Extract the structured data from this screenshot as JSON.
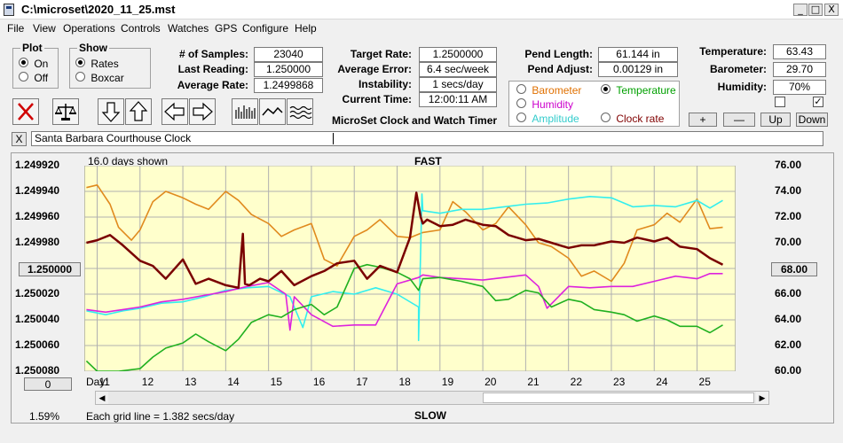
{
  "window": {
    "title": "C:\\microset\\2020_11_25.mst",
    "minimize": "_",
    "maximize": "□",
    "close": "X"
  },
  "menu": [
    "File",
    "View",
    "Operations",
    "Controls",
    "Watches",
    "GPS",
    "Configure",
    "Help"
  ],
  "plot": {
    "legend": "Plot",
    "options": [
      "On",
      "Off"
    ],
    "selected": "On"
  },
  "show": {
    "legend": "Show",
    "options": [
      "Rates",
      "Boxcar"
    ],
    "selected": "Rates"
  },
  "stats": {
    "samples_label": "# of Samples:",
    "samples": "23040",
    "last_label": "Last Reading:",
    "last": "1.250000",
    "avg_label": "Average Rate:",
    "avg": "1.2499868"
  },
  "target": {
    "target_label": "Target Rate:",
    "target": "1.2500000",
    "error_label": "Average Error:",
    "error": "6.4 sec/week",
    "instab_label": "Instability:",
    "instab": "1 secs/day",
    "time_label": "Current Time:",
    "time": "12:00:11 AM"
  },
  "app_name": "MicroSet Clock and Watch Timer",
  "pend": {
    "length_label": "Pend Length:",
    "length": "61.144 in",
    "adjust_label": "Pend Adjust:",
    "adjust": "0.00129 in"
  },
  "channels": {
    "options": [
      {
        "label": "Barometer",
        "color": "#e07000",
        "selected": false
      },
      {
        "label": "Temperature",
        "color": "#00a000",
        "selected": true
      },
      {
        "label": "Humidity",
        "color": "#cc00cc",
        "selected": false
      },
      {
        "label": "Clock rate",
        "color": "#800000",
        "selected": false
      },
      {
        "label": "Amplitude",
        "color": "#33cccc",
        "selected": false
      }
    ]
  },
  "env": {
    "temp_label": "Temperature:",
    "temp": "63.43",
    "baro_label": "Barometer:",
    "baro": "29.70",
    "hum_label": "Humidity:",
    "hum": "70%",
    "check1": false,
    "check2": true,
    "plus": "+",
    "minus": "—",
    "up": "Up",
    "down": "Down"
  },
  "note": {
    "close": "X",
    "text": "Santa Barbara Courthouse Clock"
  },
  "chart_labels": {
    "days_shown": "16.0 days shown",
    "fast": "FAST",
    "slow": "SLOW",
    "grid_note": "Each grid line = 1.382 secs/day",
    "pct": "1.59%",
    "left_center_btn": "1.250000",
    "right_center_btn": "68.00",
    "zero_btn": "0",
    "day_label": "Day:"
  },
  "chart_data": {
    "type": "line",
    "xlim": [
      10.7,
      25.9
    ],
    "x_ticks": [
      11,
      12,
      13,
      14,
      15,
      16,
      17,
      18,
      19,
      20,
      21,
      22,
      23,
      24,
      25
    ],
    "left_axis": {
      "ticks": [
        "1.249920",
        "1.249940",
        "1.249960",
        "1.249980",
        "1.250000",
        "1.250020",
        "1.250040",
        "1.250060",
        "1.250080"
      ],
      "ylim": [
        1.24992,
        1.25008
      ],
      "inverted": true
    },
    "right_axis": {
      "ticks": [
        "76.00",
        "74.00",
        "72.00",
        "70.00",
        "68.00",
        "66.00",
        "64.00",
        "62.00",
        "60.00"
      ],
      "ylim": [
        60,
        76
      ]
    },
    "series": [
      {
        "name": "Barometer",
        "color": "#e08a1e",
        "axis": "right",
        "x": [
          10.75,
          11.0,
          11.3,
          11.5,
          11.8,
          12.0,
          12.3,
          12.6,
          13.0,
          13.3,
          13.6,
          14.0,
          14.3,
          14.6,
          15.0,
          15.3,
          15.6,
          16.0,
          16.3,
          16.6,
          17.0,
          17.3,
          17.6,
          18.0,
          18.3,
          18.6,
          19.0,
          19.3,
          19.6,
          20.0,
          20.3,
          20.6,
          21.0,
          21.3,
          21.6,
          22.0,
          22.3,
          22.6,
          23.0,
          23.3,
          23.6,
          24.0,
          24.3,
          24.6,
          25.0,
          25.3,
          25.6
        ],
        "y": [
          74.3,
          74.5,
          73.0,
          71.2,
          70.2,
          71.0,
          73.2,
          74.0,
          73.5,
          73.0,
          72.6,
          74.0,
          73.3,
          72.2,
          71.5,
          70.5,
          71.0,
          71.5,
          68.7,
          68.2,
          70.5,
          71.0,
          71.8,
          70.5,
          70.4,
          70.8,
          71.0,
          73.2,
          72.4,
          71.0,
          71.5,
          72.8,
          71.4,
          70.0,
          69.7,
          68.8,
          67.4,
          67.8,
          67.0,
          68.4,
          71.0,
          71.4,
          72.3,
          71.6,
          73.4,
          71.1,
          71.2
        ]
      },
      {
        "name": "Amplitude",
        "color": "#33eeee",
        "axis": "right",
        "x": [
          10.75,
          11.2,
          11.6,
          12.0,
          12.5,
          13.0,
          13.5,
          14.0,
          14.5,
          15.0,
          15.5,
          15.8,
          16.0,
          16.5,
          17.0,
          17.5,
          18.0,
          18.5,
          18.5,
          18.58,
          18.6,
          19.0,
          19.5,
          20.0,
          20.5,
          21.0,
          21.5,
          22.0,
          22.5,
          23.0,
          23.5,
          24.0,
          24.5,
          25.0,
          25.3,
          25.6
        ],
        "y": [
          64.7,
          64.4,
          64.7,
          64.9,
          65.3,
          65.4,
          65.8,
          66.3,
          66.5,
          66.6,
          65.8,
          63.4,
          65.8,
          66.2,
          66.0,
          66.5,
          66.0,
          65.0,
          62.4,
          73.8,
          72.5,
          72.3,
          72.6,
          72.6,
          72.8,
          73.0,
          73.1,
          73.4,
          73.6,
          73.5,
          72.8,
          72.9,
          72.8,
          73.3,
          72.7,
          73.3
        ]
      },
      {
        "name": "Humidity",
        "color": "#dd22dd",
        "axis": "right",
        "x": [
          10.75,
          11.2,
          11.6,
          12.0,
          12.5,
          13.0,
          13.5,
          14.0,
          14.5,
          15.0,
          15.4,
          15.5,
          15.6,
          16.0,
          16.5,
          17.0,
          17.5,
          18.0,
          18.5,
          18.6,
          19.0,
          19.5,
          20.0,
          20.5,
          21.0,
          21.3,
          21.5,
          22.0,
          22.5,
          23.0,
          23.5,
          24.0,
          24.5,
          25.0,
          25.3,
          25.6
        ],
        "y": [
          64.8,
          64.6,
          64.8,
          65.0,
          65.4,
          65.6,
          65.9,
          66.2,
          66.6,
          66.9,
          66.0,
          63.2,
          65.8,
          64.4,
          63.5,
          63.6,
          63.6,
          66.8,
          67.3,
          67.5,
          67.3,
          67.2,
          67.1,
          67.3,
          67.5,
          66.6,
          64.9,
          66.6,
          66.5,
          66.6,
          66.6,
          67.0,
          67.4,
          67.2,
          67.6,
          67.6
        ]
      },
      {
        "name": "Temperature",
        "color": "#20b020",
        "axis": "right",
        "x": [
          10.75,
          11.0,
          11.5,
          12.0,
          12.3,
          12.6,
          13.0,
          13.3,
          13.6,
          14.0,
          14.3,
          14.6,
          15.0,
          15.3,
          15.6,
          16.0,
          16.3,
          16.6,
          17.0,
          17.3,
          17.6,
          18.0,
          18.3,
          18.5,
          18.6,
          19.0,
          19.5,
          20.0,
          20.3,
          20.6,
          21.0,
          21.3,
          21.6,
          22.0,
          22.3,
          22.6,
          23.0,
          23.3,
          23.6,
          24.0,
          24.3,
          24.6,
          25.0,
          25.3,
          25.6
        ],
        "y": [
          60.8,
          60.0,
          60.0,
          60.2,
          61.1,
          61.8,
          62.2,
          62.9,
          62.3,
          61.6,
          62.5,
          63.8,
          64.4,
          64.2,
          64.8,
          65.2,
          64.4,
          65.0,
          68.0,
          68.3,
          68.1,
          67.7,
          67.2,
          66.3,
          67.2,
          67.3,
          67.0,
          66.6,
          65.5,
          65.6,
          66.3,
          66.1,
          65.0,
          65.6,
          65.4,
          64.8,
          64.6,
          64.4,
          63.9,
          64.3,
          64.0,
          63.5,
          63.5,
          63.0,
          63.6
        ]
      },
      {
        "name": "Clock rate",
        "color": "#7a0000",
        "axis": "left",
        "x": [
          10.75,
          11.0,
          11.3,
          11.6,
          12.0,
          12.3,
          12.6,
          13.0,
          13.3,
          13.6,
          14.0,
          14.3,
          14.4,
          14.45,
          14.55,
          14.8,
          15.0,
          15.3,
          15.6,
          16.0,
          16.3,
          16.6,
          17.0,
          17.3,
          17.6,
          18.0,
          18.3,
          18.45,
          18.55,
          18.6,
          18.7,
          19.0,
          19.3,
          19.6,
          20.0,
          20.3,
          20.6,
          21.0,
          21.3,
          21.6,
          22.0,
          22.3,
          22.6,
          23.0,
          23.3,
          23.6,
          24.0,
          24.3,
          24.6,
          25.0,
          25.3,
          25.6
        ],
        "y": [
          1.24998,
          1.249978,
          1.249974,
          1.249982,
          1.249994,
          1.249998,
          1.250008,
          1.249993,
          1.250012,
          1.250008,
          1.250013,
          1.250015,
          1.249973,
          1.250012,
          1.250013,
          1.250008,
          1.25001,
          1.250002,
          1.250013,
          1.250006,
          1.250002,
          1.249996,
          1.249994,
          1.250008,
          1.249998,
          1.250003,
          1.249976,
          1.249941,
          1.24996,
          1.249965,
          1.249962,
          1.249967,
          1.249966,
          1.249962,
          1.249966,
          1.249967,
          1.249974,
          1.249978,
          1.249977,
          1.24998,
          1.249984,
          1.249982,
          1.249982,
          1.249979,
          1.24998,
          1.249976,
          1.249979,
          1.249976,
          1.249983,
          1.249985,
          1.249992,
          1.249997
        ]
      }
    ]
  }
}
